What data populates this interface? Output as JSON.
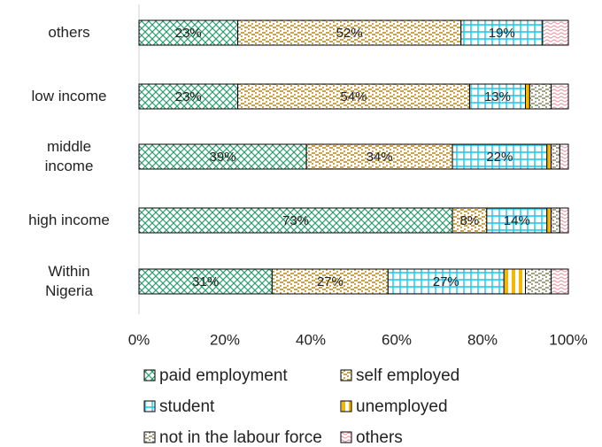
{
  "chart_data": {
    "type": "stacked-bar-horizontal",
    "categories": [
      "others",
      "low income",
      "middle\nincome",
      "high income",
      "Within\nNigeria"
    ],
    "xlim": [
      0,
      100
    ],
    "xticks": [
      {
        "value": 0,
        "label": "0%"
      },
      {
        "value": 20,
        "label": "20%"
      },
      {
        "value": 40,
        "label": "40%"
      },
      {
        "value": 60,
        "label": "60%"
      },
      {
        "value": 80,
        "label": "80%"
      },
      {
        "value": 100,
        "label": "100%"
      }
    ],
    "legend": "bottom",
    "series": [
      {
        "name": "paid employment",
        "color": "#2f9e72",
        "pattern": "crosshatch",
        "values": [
          23,
          23,
          39,
          73,
          31
        ],
        "value_labels": [
          "23%",
          "23%",
          "39%",
          "73%",
          "31%"
        ]
      },
      {
        "name": "self employed",
        "color": "#c49a3a",
        "pattern": "dots",
        "values": [
          52,
          54,
          34,
          8,
          27
        ],
        "value_labels": [
          "52%",
          "54%",
          "34%",
          "8%",
          "27%"
        ]
      },
      {
        "name": "student",
        "color": "#1cc4e8",
        "pattern": "grid",
        "values": [
          19,
          13,
          22,
          14,
          27
        ],
        "value_labels": [
          "19%",
          "13%",
          "22%",
          "14%",
          "27%"
        ]
      },
      {
        "name": "unemployed",
        "color": "#f5b800",
        "pattern": "vstripes",
        "values": [
          0,
          1,
          1,
          1,
          5
        ]
      },
      {
        "name": "not in the labour force",
        "color": "#9a9a78",
        "pattern": "dots",
        "values": [
          0,
          5,
          2,
          2,
          6
        ]
      },
      {
        "name": "others",
        "color": "#e89aa8",
        "pattern": "waves",
        "values": [
          6,
          4,
          2,
          2,
          4
        ]
      }
    ]
  }
}
